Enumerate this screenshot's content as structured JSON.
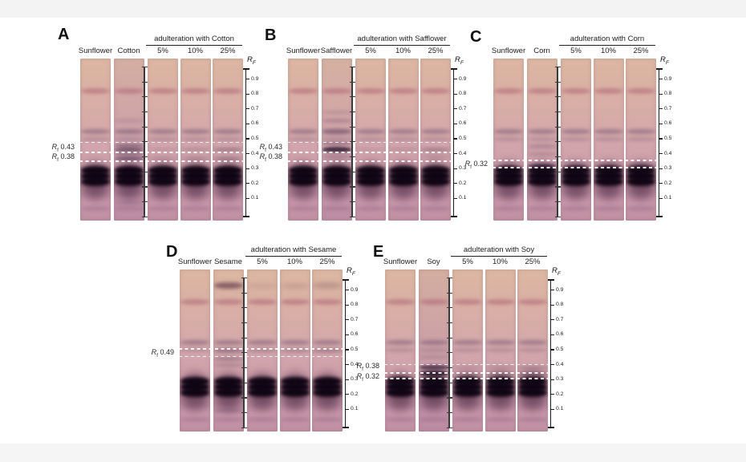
{
  "figure": {
    "background": "#ffffff",
    "top_strip_color": "#f3f3f3",
    "bottom_strip_color": "#f5f5f5"
  },
  "axis": {
    "label_main": "R",
    "label_sub": "F",
    "tick_labels": [
      "0.9",
      "0.8",
      "0.7",
      "0.6",
      "0.5",
      "0.4",
      "0.3",
      "0.2",
      "0.1"
    ]
  },
  "annotation_prefix": {
    "main": "R",
    "sub": "f"
  },
  "lane_style": {
    "base_bands": [
      [
        0.82,
        7,
        "#a85a6e",
        0.5,
        2
      ],
      [
        0.55,
        6,
        "#5c4060",
        0.42,
        2
      ],
      [
        0.5,
        5,
        "#6a4c68",
        0.26,
        2
      ],
      [
        0.22,
        44,
        "#30102a",
        0.55,
        6
      ],
      [
        0.29,
        11,
        "#0d0312",
        0.96,
        2
      ],
      [
        0.25,
        11,
        "#0d0312",
        0.96,
        2
      ],
      [
        0.21,
        11,
        "#0d0312",
        0.96,
        2
      ],
      [
        0.13,
        12,
        "#6d4668",
        0.2,
        4
      ],
      [
        0.03,
        6,
        "#7d5472",
        0.28,
        2
      ]
    ]
  },
  "panels": [
    {
      "letter": "A",
      "ref_labels": [
        "Sunflower",
        "Cotton"
      ],
      "group_label": "adulteration with Cotton",
      "pct_labels": [
        "5%",
        "10%",
        "25%"
      ],
      "dashes": [
        0.475,
        0.41,
        0.35
      ],
      "annotations": [
        {
          "value": "0.43",
          "rf": 0.4425
        },
        {
          "value": "0.38",
          "rf": 0.379
        }
      ],
      "lanes": [
        {
          "tint": null,
          "bands": []
        },
        {
          "tint": "rgba(150,110,165,0.10)",
          "bands": [
            [
              0.62,
              5,
              "#6a4c68",
              0.18,
              2
            ],
            [
              0.455,
              5,
              "#4a2c4a",
              0.4,
              1.5
            ],
            [
              0.43,
              5,
              "#35203f",
              0.55,
              1.5
            ],
            [
              0.4,
              4,
              "#4a2c4a",
              0.4,
              1.5
            ],
            [
              0.37,
              5,
              "#35203f",
              0.48,
              1.5
            ],
            [
              0.07,
              5,
              "#6d4668",
              0.25,
              2
            ]
          ]
        },
        {
          "tint": null,
          "bands": [
            [
              0.43,
              4,
              "#35203f",
              0.12,
              2
            ],
            [
              0.37,
              4,
              "#35203f",
              0.1,
              2
            ]
          ]
        },
        {
          "tint": null,
          "bands": [
            [
              0.43,
              4,
              "#35203f",
              0.2,
              2
            ],
            [
              0.37,
              4,
              "#35203f",
              0.16,
              2
            ]
          ]
        },
        {
          "tint": null,
          "bands": [
            [
              0.43,
              5,
              "#35203f",
              0.3,
              2
            ],
            [
              0.37,
              5,
              "#35203f",
              0.24,
              2
            ]
          ]
        }
      ]
    },
    {
      "letter": "B",
      "ref_labels": [
        "Sunflower",
        "Safflower"
      ],
      "group_label": "adulteration with Safflower",
      "pct_labels": [
        "5%",
        "10%",
        "25%"
      ],
      "dashes": [
        0.475,
        0.41,
        0.35
      ],
      "annotations": [
        {
          "value": "0.43",
          "rf": 0.4425
        },
        {
          "value": "0.38",
          "rf": 0.379
        }
      ],
      "lanes": [
        {
          "tint": null,
          "bands": []
        },
        {
          "tint": "rgba(150,110,160,0.08)",
          "bands": [
            [
              0.68,
              4,
              "#5c4060",
              0.22,
              2
            ],
            [
              0.62,
              5,
              "#5c4060",
              0.3,
              2
            ],
            [
              0.55,
              6,
              "#4a2c50",
              0.25,
              2
            ],
            [
              0.47,
              4,
              "#4a2c4a",
              0.35,
              1.5
            ],
            [
              0.43,
              7,
              "#241028",
              0.78,
              1.5
            ],
            [
              0.38,
              4,
              "#4a2c4a",
              0.28,
              2
            ]
          ]
        },
        {
          "tint": null,
          "bands": [
            [
              0.43,
              4,
              "#35203f",
              0.1,
              2
            ]
          ]
        },
        {
          "tint": null,
          "bands": [
            [
              0.43,
              4,
              "#35203f",
              0.16,
              2
            ]
          ]
        },
        {
          "tint": null,
          "bands": [
            [
              0.43,
              5,
              "#35203f",
              0.28,
              2
            ],
            [
              0.38,
              4,
              "#35203f",
              0.14,
              2
            ]
          ]
        }
      ]
    },
    {
      "letter": "C",
      "ref_labels": [
        "Sunflower",
        "Corn"
      ],
      "group_label": "adulteration with Corn",
      "pct_labels": [
        "5%",
        "10%",
        "25%"
      ],
      "dashes": [
        0.355,
        0.305
      ],
      "annotations": [
        {
          "value": "0.32",
          "rf": 0.33
        }
      ],
      "lanes": [
        {
          "tint": null,
          "bands": []
        },
        {
          "tint": null,
          "bands": [
            [
              0.45,
              5,
              "#5a3a58",
              0.3,
              2
            ],
            [
              0.4,
              4,
              "#5a3a58",
              0.26,
              2
            ],
            [
              0.32,
              5,
              "#2a1535",
              0.5,
              1.5
            ]
          ]
        },
        {
          "tint": null,
          "bands": [
            [
              0.32,
              4,
              "#2a1535",
              0.14,
              2
            ]
          ]
        },
        {
          "tint": null,
          "bands": [
            [
              0.32,
              4,
              "#2a1535",
              0.18,
              2
            ]
          ]
        },
        {
          "tint": null,
          "bands": [
            [
              0.32,
              5,
              "#2a1535",
              0.28,
              2
            ]
          ]
        }
      ]
    },
    {
      "letter": "D",
      "ref_labels": [
        "Sunflower",
        "Sesame"
      ],
      "group_label": "adulteration with Sesame",
      "pct_labels": [
        "5%",
        "10%",
        "25%"
      ],
      "dashes": [
        0.505,
        0.455
      ],
      "annotations": [
        {
          "value": "0.49",
          "rf": 0.479
        }
      ],
      "lanes": [
        {
          "tint": null,
          "bands": []
        },
        {
          "tint": null,
          "bands": [
            [
              0.93,
              8,
              "#50283c",
              0.6,
              2.5
            ],
            [
              0.49,
              5,
              "#5a3a58",
              0.35,
              2
            ],
            [
              0.44,
              5,
              "#5a3a58",
              0.38,
              2
            ],
            [
              0.4,
              4,
              "#5a3a58",
              0.3,
              2
            ],
            [
              0.09,
              6,
              "#6d4668",
              0.3,
              2
            ]
          ]
        },
        {
          "tint": null,
          "bands": [
            [
              0.93,
              7,
              "#50283c",
              0.1,
              3
            ],
            [
              0.49,
              4,
              "#5a3a58",
              0.1,
              2
            ]
          ]
        },
        {
          "tint": null,
          "bands": [
            [
              0.93,
              7,
              "#50283c",
              0.14,
              3
            ],
            [
              0.49,
              4,
              "#5a3a58",
              0.14,
              2
            ]
          ]
        },
        {
          "tint": null,
          "bands": [
            [
              0.93,
              8,
              "#50283c",
              0.22,
              3
            ],
            [
              0.49,
              5,
              "#5a3a58",
              0.2,
              2
            ]
          ]
        }
      ]
    },
    {
      "letter": "E",
      "ref_labels": [
        "Sunflower",
        "Soy"
      ],
      "group_label": "adulteration with Soy",
      "pct_labels": [
        "5%",
        "10%",
        "25%"
      ],
      "dashes": [
        0.4,
        0.345,
        0.305
      ],
      "annotations": [
        {
          "value": "0.38",
          "rf": 0.385
        },
        {
          "value": "0.32",
          "rf": 0.318
        }
      ],
      "lanes": [
        {
          "tint": null,
          "bands": []
        },
        {
          "tint": "rgba(140,100,150,0.10)",
          "bands": [
            [
              0.45,
              4,
              "#5a3a58",
              0.22,
              2
            ],
            [
              0.38,
              6,
              "#241028",
              0.65,
              1.5
            ],
            [
              0.34,
              7,
              "#140a1c",
              0.8,
              1.5
            ]
          ]
        },
        {
          "tint": null,
          "bands": [
            [
              0.38,
              4,
              "#241028",
              0.1,
              2
            ],
            [
              0.34,
              4,
              "#241028",
              0.14,
              2
            ]
          ]
        },
        {
          "tint": null,
          "bands": [
            [
              0.38,
              4,
              "#241028",
              0.14,
              2
            ],
            [
              0.34,
              5,
              "#241028",
              0.2,
              2
            ]
          ]
        },
        {
          "tint": null,
          "bands": [
            [
              0.38,
              5,
              "#241028",
              0.2,
              2
            ],
            [
              0.34,
              6,
              "#241028",
              0.3,
              2
            ]
          ]
        }
      ]
    }
  ]
}
